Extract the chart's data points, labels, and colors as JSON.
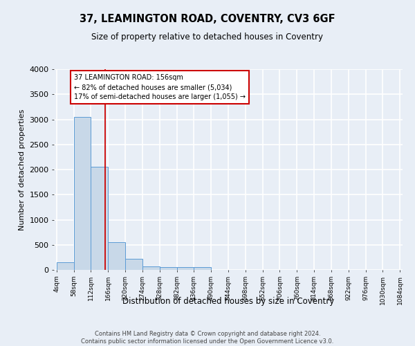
{
  "title": "37, LEAMINGTON ROAD, COVENTRY, CV3 6GF",
  "subtitle": "Size of property relative to detached houses in Coventry",
  "xlabel": "Distribution of detached houses by size in Coventry",
  "ylabel": "Number of detached properties",
  "bin_edges": [
    4,
    58,
    112,
    166,
    220,
    274,
    328,
    382,
    436,
    490,
    544,
    598,
    652,
    706,
    760,
    814,
    868,
    922,
    976,
    1030,
    1084
  ],
  "bar_heights": [
    150,
    3050,
    2050,
    550,
    220,
    75,
    50,
    50,
    50,
    0,
    0,
    0,
    0,
    0,
    0,
    0,
    0,
    0,
    0,
    0
  ],
  "bar_color": "#c8d8e8",
  "bar_edgecolor": "#5b9bd5",
  "vline_x": 156,
  "vline_color": "#cc0000",
  "annotation_line1": "37 LEAMINGTON ROAD: 156sqm",
  "annotation_line2": "← 82% of detached houses are smaller (5,034)",
  "annotation_line3": "17% of semi-detached houses are larger (1,055) →",
  "annotation_box_edgecolor": "#cc0000",
  "annotation_box_facecolor": "#ffffff",
  "ylim": [
    0,
    4000
  ],
  "yticks": [
    0,
    500,
    1000,
    1500,
    2000,
    2500,
    3000,
    3500,
    4000
  ],
  "background_color": "#e8eef6",
  "grid_color": "#ffffff",
  "footer_line1": "Contains HM Land Registry data © Crown copyright and database right 2024.",
  "footer_line2": "Contains public sector information licensed under the Open Government Licence v3.0."
}
